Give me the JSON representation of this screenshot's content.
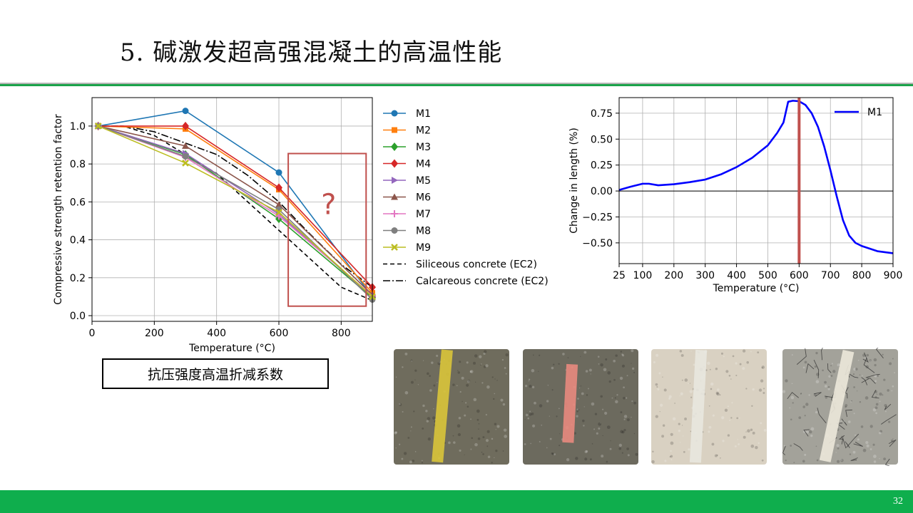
{
  "slide": {
    "title": "5. 碱激发超高强混凝土的高温性能",
    "page_number": "32",
    "caption": "抗压强度高温折减系数",
    "question_mark": "?"
  },
  "chart_data": [
    {
      "type": "line",
      "xlabel": "Temperature (°C)",
      "ylabel": "Compressive strength retention factor",
      "xlim": [
        0,
        900
      ],
      "ylim": [
        -0.03,
        1.15
      ],
      "xticks": [
        0,
        200,
        400,
        600,
        800
      ],
      "xtick_labels": [
        "0",
        "200",
        "400",
        "600",
        "800"
      ],
      "yticks": [
        0.0,
        0.2,
        0.4,
        0.6,
        0.8,
        1.0
      ],
      "ytick_labels": [
        "0.0",
        "0.2",
        "0.4",
        "0.6",
        "0.8",
        "1.0"
      ],
      "grid": true,
      "legend_position": "outside-right",
      "x": [
        20,
        300,
        600,
        900
      ],
      "series": [
        {
          "name": "M1",
          "color": "#1f77b4",
          "marker": "circle",
          "values": [
            1.0,
            1.08,
            0.755,
            0.1
          ]
        },
        {
          "name": "M2",
          "color": "#ff7f0e",
          "marker": "square",
          "values": [
            1.0,
            0.985,
            0.665,
            0.12
          ]
        },
        {
          "name": "M3",
          "color": "#2ca02c",
          "marker": "diamond",
          "values": [
            1.0,
            0.85,
            0.51,
            0.095
          ]
        },
        {
          "name": "M4",
          "color": "#d62728",
          "marker": "diamond",
          "values": [
            1.0,
            1.0,
            0.675,
            0.15
          ]
        },
        {
          "name": "M5",
          "color": "#9467bd",
          "marker": "triangle-right",
          "values": [
            1.0,
            0.855,
            0.535,
            0.1
          ]
        },
        {
          "name": "M6",
          "color": "#8c564b",
          "marker": "triangle-up",
          "values": [
            1.0,
            0.895,
            0.585,
            0.11
          ]
        },
        {
          "name": "M7",
          "color": "#e377c2",
          "marker": "plus",
          "values": [
            1.0,
            0.835,
            0.525,
            0.105
          ]
        },
        {
          "name": "M8",
          "color": "#7f7f7f",
          "marker": "circle",
          "values": [
            1.0,
            0.84,
            0.56,
            0.085
          ]
        },
        {
          "name": "M9",
          "color": "#bcbd22",
          "marker": "x",
          "values": [
            1.0,
            0.805,
            0.545,
            0.1
          ]
        }
      ],
      "reference_curves": [
        {
          "name": "Siliceous concrete (EC2)",
          "style": "dashed",
          "color": "#000000",
          "x": [
            20,
            100,
            200,
            300,
            400,
            500,
            600,
            700,
            800,
            900
          ],
          "values": [
            1.0,
            1.0,
            0.95,
            0.85,
            0.75,
            0.6,
            0.45,
            0.3,
            0.15,
            0.08
          ]
        },
        {
          "name": "Calcareous concrete (EC2)",
          "style": "dashdot",
          "color": "#000000",
          "x": [
            20,
            100,
            200,
            300,
            400,
            500,
            600,
            700,
            800,
            900
          ],
          "values": [
            1.0,
            1.0,
            0.97,
            0.91,
            0.85,
            0.74,
            0.6,
            0.43,
            0.27,
            0.15
          ]
        }
      ],
      "highlight_box": {
        "x_range": [
          630,
          880
        ],
        "y_range": [
          0.05,
          0.855
        ],
        "color": "#c0504d",
        "label": "?"
      }
    },
    {
      "type": "line",
      "xlabel": "Temperature (°C)",
      "ylabel": "Change in length (%)",
      "xlim": [
        25,
        900
      ],
      "ylim": [
        -0.7,
        0.9
      ],
      "xticks": [
        25,
        100,
        200,
        300,
        400,
        500,
        600,
        700,
        800,
        900
      ],
      "xtick_labels": [
        "25",
        "100",
        "200",
        "300",
        "400",
        "500",
        "600",
        "700",
        "800",
        "900"
      ],
      "yticks": [
        -0.5,
        -0.25,
        0.0,
        0.25,
        0.5,
        0.75
      ],
      "ytick_labels": [
        "−0.50",
        "−0.25",
        "0.00",
        "0.25",
        "0.50",
        "0.75"
      ],
      "grid": true,
      "legend_position": "upper-right",
      "zero_line": true,
      "vertical_marker": {
        "x": 600,
        "color": "#c0504d"
      },
      "series": [
        {
          "name": "M1",
          "color": "#0000ff",
          "x": [
            25,
            60,
            100,
            120,
            150,
            200,
            250,
            300,
            350,
            400,
            450,
            500,
            530,
            550,
            565,
            580,
            600,
            620,
            640,
            660,
            680,
            700,
            720,
            740,
            760,
            780,
            800,
            850,
            900
          ],
          "values": [
            0.01,
            0.04,
            0.07,
            0.07,
            0.055,
            0.065,
            0.085,
            0.11,
            0.16,
            0.23,
            0.32,
            0.44,
            0.56,
            0.66,
            0.86,
            0.87,
            0.865,
            0.83,
            0.75,
            0.62,
            0.43,
            0.2,
            -0.05,
            -0.28,
            -0.43,
            -0.5,
            -0.53,
            -0.58,
            -0.6
          ]
        }
      ]
    }
  ],
  "photos": [
    {
      "name": "sample-25c",
      "base": "#6f6c5d",
      "stripe": "#d9c53a",
      "crack": false
    },
    {
      "name": "sample-300c",
      "base": "#6c6a5e",
      "stripe": "#e98a7e",
      "crack": false
    },
    {
      "name": "sample-600c",
      "base": "#d9d1c2",
      "stripe": "#e8e7df",
      "crack": false
    },
    {
      "name": "sample-900c",
      "base": "#a3a29a",
      "stripe": "#ece8da",
      "crack": true
    }
  ]
}
